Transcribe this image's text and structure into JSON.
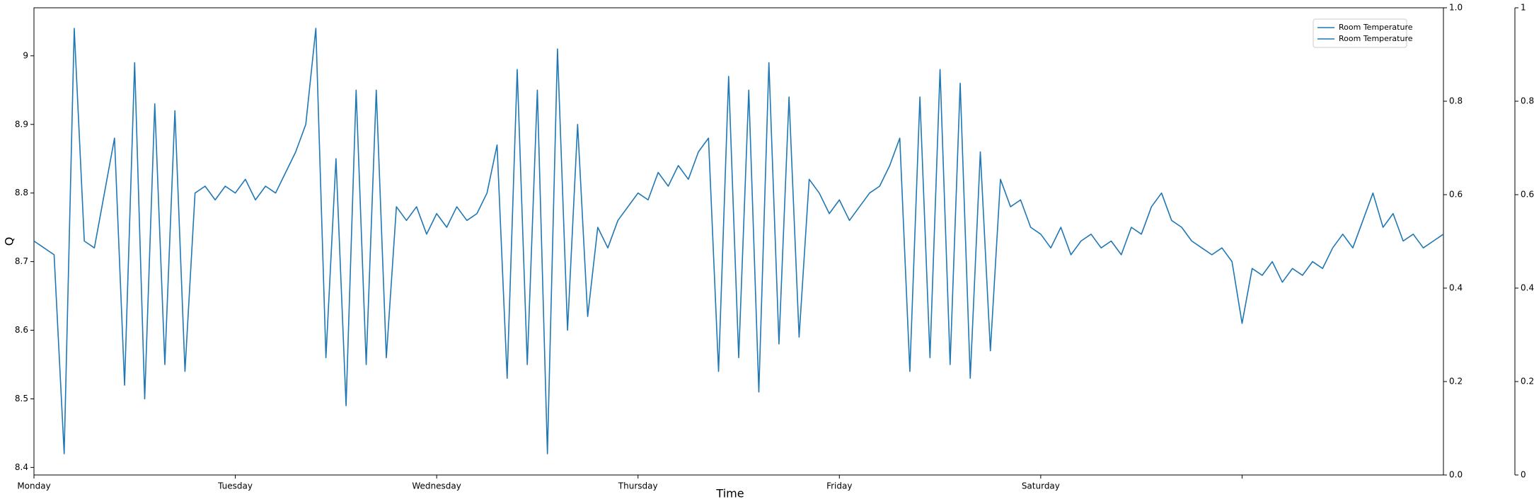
{
  "chart_data": {
    "type": "line",
    "x_label": "Time",
    "y_label": "Q",
    "x": [
      0,
      0.05,
      0.1,
      0.15,
      0.2,
      0.25,
      0.3,
      0.35,
      0.4,
      0.45,
      0.5,
      0.55,
      0.6,
      0.65,
      0.7,
      0.75,
      0.8,
      0.85,
      0.9,
      0.95,
      1,
      1.05,
      1.1,
      1.15,
      1.2,
      1.25,
      1.3,
      1.35,
      1.4,
      1.45,
      1.5,
      1.55,
      1.6,
      1.65,
      1.7,
      1.75,
      1.8,
      1.85,
      1.9,
      1.95,
      2,
      2.05,
      2.1,
      2.15,
      2.2,
      2.25,
      2.3,
      2.35,
      2.4,
      2.45,
      2.5,
      2.55,
      2.6,
      2.65,
      2.7,
      2.75,
      2.8,
      2.85,
      2.9,
      2.95,
      3,
      3.05,
      3.1,
      3.15,
      3.2,
      3.25,
      3.3,
      3.35,
      3.4,
      3.45,
      3.5,
      3.55,
      3.6,
      3.65,
      3.7,
      3.75,
      3.8,
      3.85,
      3.9,
      3.95,
      4,
      4.05,
      4.1,
      4.15,
      4.2,
      4.25,
      4.3,
      4.35,
      4.4,
      4.45,
      4.5,
      4.55,
      4.6,
      4.65,
      4.7,
      4.75,
      4.8,
      4.85,
      4.9,
      4.95,
      5,
      5.05,
      5.1,
      5.15,
      5.2,
      5.25,
      5.3,
      5.35,
      5.4,
      5.45,
      5.5,
      5.55,
      5.6,
      5.65,
      5.7,
      5.75,
      5.8,
      5.85,
      5.9,
      5.95,
      6,
      6.05,
      6.1,
      6.15,
      6.2,
      6.25,
      6.3,
      6.35,
      6.4,
      6.45,
      6.5,
      6.55,
      6.6,
      6.65,
      6.7,
      6.75,
      6.8,
      6.85,
      6.9,
      6.95,
      7
    ],
    "series": [
      {
        "name": "Room Temperature",
        "color": "#1f77b4",
        "values": [
          8.73,
          8.72,
          8.71,
          8.42,
          9.04,
          8.73,
          8.72,
          8.8,
          8.88,
          8.52,
          8.99,
          8.5,
          8.93,
          8.55,
          8.92,
          8.54,
          8.8,
          8.81,
          8.79,
          8.81,
          8.8,
          8.82,
          8.79,
          8.81,
          8.8,
          8.83,
          8.86,
          8.9,
          9.04,
          8.56,
          8.85,
          8.49,
          8.95,
          8.55,
          8.95,
          8.56,
          8.78,
          8.76,
          8.78,
          8.74,
          8.77,
          8.75,
          8.78,
          8.76,
          8.77,
          8.8,
          8.87,
          8.53,
          8.98,
          8.55,
          8.95,
          8.42,
          9.01,
          8.6,
          8.9,
          8.62,
          8.75,
          8.72,
          8.76,
          8.78,
          8.8,
          8.79,
          8.83,
          8.81,
          8.84,
          8.82,
          8.86,
          8.88,
          8.54,
          8.97,
          8.56,
          8.95,
          8.51,
          8.99,
          8.58,
          8.94,
          8.59,
          8.82,
          8.8,
          8.77,
          8.79,
          8.76,
          8.78,
          8.8,
          8.81,
          8.84,
          8.88,
          8.54,
          8.94,
          8.56,
          8.98,
          8.55,
          8.96,
          8.53,
          8.86,
          8.57,
          8.82,
          8.78,
          8.79,
          8.75,
          8.74,
          8.72,
          8.75,
          8.71,
          8.73,
          8.74,
          8.72,
          8.73,
          8.71,
          8.75,
          8.74,
          8.78,
          8.8,
          8.76,
          8.75,
          8.73,
          8.72,
          8.71,
          8.72,
          8.7,
          8.61,
          8.69,
          8.68,
          8.7,
          8.67,
          8.69,
          8.68,
          8.7,
          8.69,
          8.72,
          8.74,
          8.72,
          8.76,
          8.8,
          8.75,
          8.77,
          8.73,
          8.74,
          8.72,
          8.73,
          8.74
        ]
      }
    ],
    "legend": {
      "loc": "upper right",
      "labels": [
        "Room Temperature",
        "Room Temperature"
      ],
      "color": "#1f77b4"
    },
    "xlim": [
      0,
      7
    ],
    "xticks": [
      {
        "value": 0,
        "label": "Monday"
      },
      {
        "value": 1,
        "label": "Tuesday"
      },
      {
        "value": 2,
        "label": "Wednesday"
      },
      {
        "value": 3,
        "label": "Thursday"
      },
      {
        "value": 4,
        "label": "Friday"
      },
      {
        "value": 5,
        "label": "Saturday"
      },
      {
        "value": 6,
        "label": null
      }
    ],
    "ylim": [
      8.389,
      9.07
    ],
    "yticks": [
      8.4,
      8.5,
      8.6,
      8.7,
      8.8,
      8.9,
      9.0
    ],
    "y2lim": [
      0,
      1
    ],
    "y2ticks": [
      {
        "value": 0,
        "label": "0.0"
      },
      0.2,
      0.4,
      0.6,
      0.8,
      {
        "value": 1,
        "label": "1.0"
      }
    ],
    "y3lim": [
      0,
      1
    ],
    "y3ticks": [
      0,
      0.2,
      0.4,
      0.6,
      0.8,
      1
    ],
    "grid": false
  }
}
